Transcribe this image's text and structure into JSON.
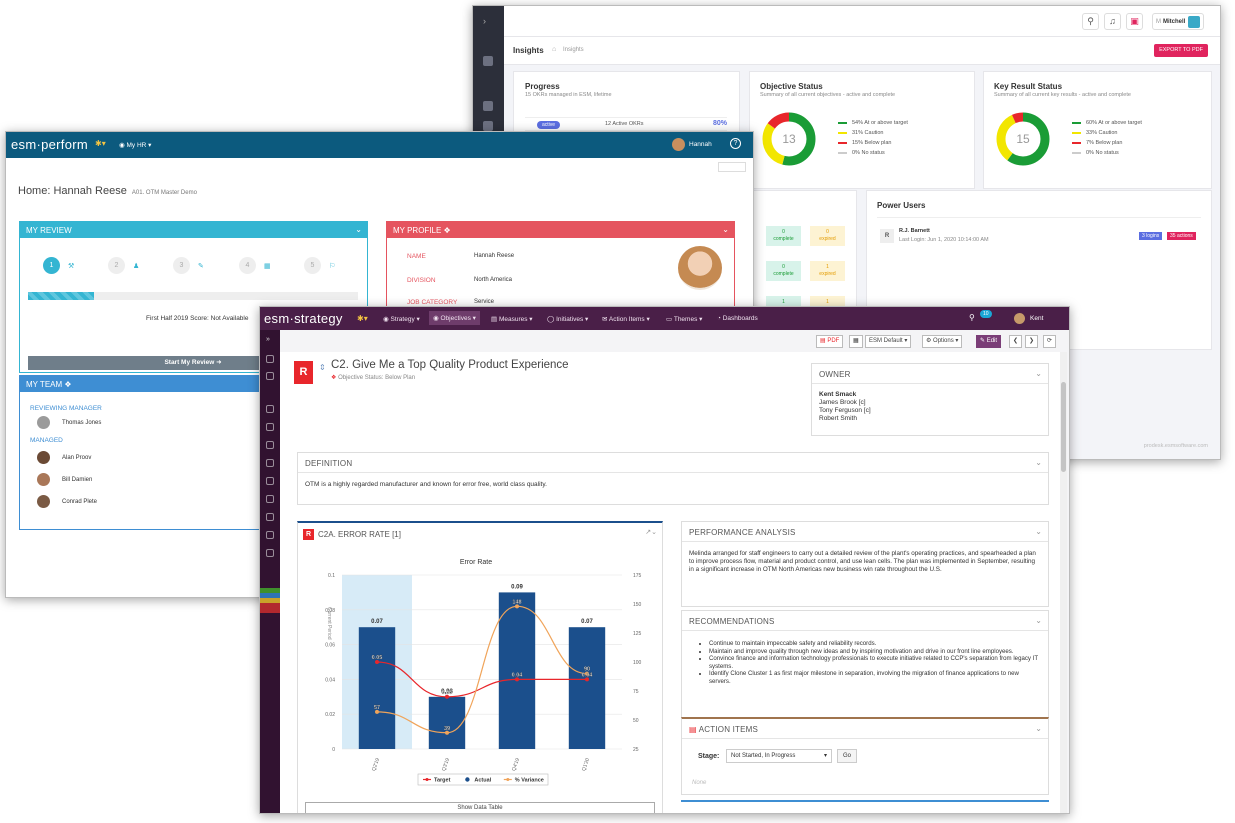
{
  "insights": {
    "user": "Mitchell",
    "user_initials": "M",
    "breadcrumb_root": "Insights",
    "breadcrumb_current": "Insights",
    "export_button": "EXPORT TO PDF",
    "progress": {
      "title": "Progress",
      "subtitle": "15 OKRs managed in ESM, lifetime",
      "badge": "active",
      "active_text": "12 Active OKRs",
      "pct": "80%"
    },
    "objective_status": {
      "title": "Objective Status",
      "subtitle": "Summary of all current objectives - active and complete",
      "total": "13",
      "legend": [
        "54% At or above target",
        "31% Caution",
        "15% Below plan",
        "0% No status"
      ],
      "fractions": [
        0.54,
        0.31,
        0.15,
        0.0
      ]
    },
    "key_result_status": {
      "title": "Key Result Status",
      "subtitle": "Summary of all current key results - active and complete",
      "total": "15",
      "legend": [
        "60% At or above target",
        "33% Caution",
        "7% Below plan",
        "0% No status"
      ],
      "fractions": [
        0.6,
        0.33,
        0.07,
        0.0
      ]
    },
    "mini_stats": [
      {
        "value": "0",
        "label": "complete",
        "kind": "complete"
      },
      {
        "value": "0",
        "label": "expired",
        "kind": "expired"
      },
      {
        "value": "0",
        "label": "complete",
        "kind": "complete"
      },
      {
        "value": "1",
        "label": "expired",
        "kind": "expired"
      },
      {
        "value": "1",
        "label": "complete",
        "kind": "complete"
      },
      {
        "value": "1",
        "label": "expired",
        "kind": "expired"
      }
    ],
    "power_users": {
      "title": "Power Users",
      "avatar": "R",
      "name": "R.J. Barnett",
      "last_login": "Last Login: Jun 1, 2020 10:14:00 AM",
      "badge_logins": "3 logins",
      "badge_actions": "35 actions"
    },
    "footer": "prodesk.esmsoftware.com"
  },
  "perform": {
    "logo": "esm·perform",
    "menu": "My HR",
    "user": "Hannah",
    "home_title": "Home: Hannah Reese",
    "home_sub": "A01. OTM Master Demo",
    "review": {
      "title": "MY REVIEW",
      "steps": [
        "1",
        "2",
        "3",
        "4",
        "5"
      ],
      "score": "First Half 2019 Score: Not Available",
      "start_button": "Start My Review",
      "progress": 0.2
    },
    "profile": {
      "title": "MY PROFILE",
      "rows": [
        {
          "label": "NAME",
          "value": "Hannah Reese"
        },
        {
          "label": "DIVISION",
          "value": "North America"
        },
        {
          "label": "JOB CATEGORY",
          "value": "Service"
        }
      ]
    },
    "team": {
      "title": "MY TEAM",
      "reviewing_label": "REVIEWING MANAGER",
      "reviewing": "Thomas Jones",
      "managed_label": "MANAGED",
      "managed": [
        "Alan Proov",
        "Bill Damien",
        "Conrad Plete"
      ]
    }
  },
  "strategy": {
    "logo": "esm·strategy",
    "nav": [
      "Strategy",
      "Objectives",
      "Measures",
      "Initiatives",
      "Action Items",
      "Themes",
      "Dashboards"
    ],
    "notif_count": "10",
    "user": "Kent",
    "toolbar": {
      "pdf": "PDF",
      "layout": "ESM Default",
      "options": "Options",
      "edit": "Edit"
    },
    "objective": {
      "badge": "R",
      "title": "C2. Give Me a Top Quality Product Experience",
      "status": "Objective Status: Below Plan"
    },
    "owner": {
      "title": "OWNER",
      "primary": "Kent Smack",
      "others": [
        "James Brook [c]",
        "Tony Ferguson [c]",
        "Robert Smith"
      ]
    },
    "definition": {
      "title": "DEFINITION",
      "text": "OTM is a highly regarded manufacturer and known for error free, world class quality."
    },
    "measure": {
      "badge": "R",
      "title": "C2A. ERROR RATE [1]",
      "show_table": "Show Data Table"
    },
    "performance": {
      "title": "PERFORMANCE ANALYSIS",
      "text": "Melinda arranged for staff engineers to carry out a detailed review of the plant's operating practices, and spearheaded a plan to improve process flow, material and product control, and use lean cells. The plan was implemented in September, resulting in a significant increase in OTM North Americas new business win rate throughout the U.S."
    },
    "recommendations": {
      "title": "RECOMMENDATIONS",
      "items": [
        "Continue to maintain impeccable safety and reliability records.",
        "Maintain and improve quality through new ideas and by inspiring motivation and drive in our front line employees.",
        "Convince finance and information technology professionals to execute initiative related to CCP's separation from legacy IT systems.",
        "Identify Clone Cluster 1 as first major milestone in separation, involving the migration of finance applications to new servers."
      ]
    },
    "action_items": {
      "title": "ACTION ITEMS",
      "stage_label": "Stage:",
      "stage_value": "Not Started, In Progress",
      "go": "Go",
      "empty": "None"
    }
  },
  "chart_data": {
    "type": "bar",
    "title": "Error Rate",
    "categories": [
      "Q2'19",
      "Q3'19",
      "Q4'19",
      "Q1'20"
    ],
    "ylim": [
      0,
      0.1
    ],
    "y2lim": [
      25,
      175
    ],
    "yticks": [
      "0",
      "0.02",
      "0.04",
      "0.06",
      "0.08",
      "0.1"
    ],
    "y2ticks": [
      "25",
      "50",
      "75",
      "100",
      "125",
      "150",
      "175"
    ],
    "ylabel": "Current Period",
    "series": [
      {
        "name": "Target",
        "type": "line",
        "axis": "left",
        "values": [
          0.05,
          0.03,
          0.04,
          0.04
        ],
        "labels": [
          "0.05",
          "0.03",
          "0.04",
          "0.04"
        ],
        "color": "#e8262b"
      },
      {
        "name": "Actual",
        "type": "bar",
        "axis": "left",
        "values": [
          0.07,
          0.03,
          0.09,
          0.07
        ],
        "labels": [
          "0.07",
          "0.03",
          "0.09",
          "0.07"
        ],
        "color": "#1b4f8c"
      },
      {
        "name": "% Variance",
        "type": "line",
        "axis": "right",
        "values": [
          57,
          39,
          148,
          90
        ],
        "labels": [
          "57",
          "39",
          "148",
          "90"
        ],
        "color": "#f0a45a"
      }
    ]
  }
}
